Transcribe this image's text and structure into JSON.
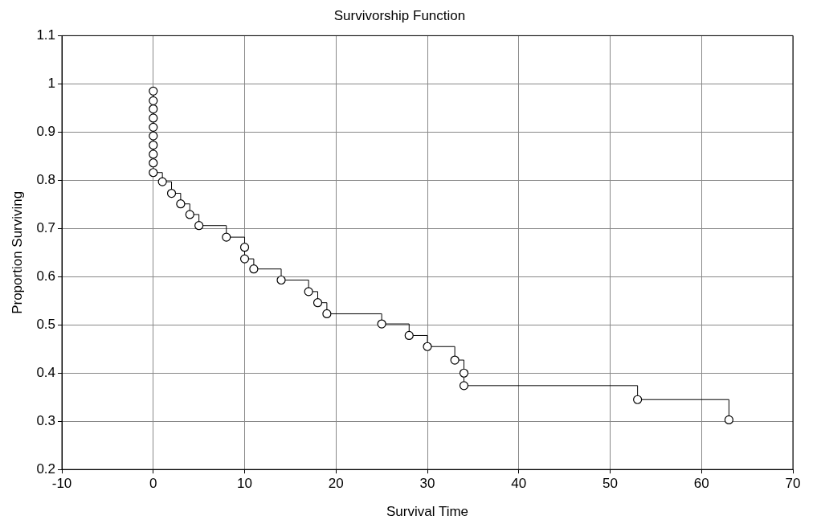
{
  "chart_data": {
    "type": "step",
    "title": "Survivorship Function",
    "xlabel": "Survival Time",
    "ylabel": "Proportion Surviving",
    "xlim": [
      -10,
      70
    ],
    "xticks": [
      -10,
      0,
      10,
      20,
      30,
      40,
      50,
      60,
      70
    ],
    "ylim": [
      0.2,
      1.1
    ],
    "yticks": [
      0.2,
      0.3,
      0.4,
      0.5,
      0.6,
      0.7,
      0.8,
      0.9,
      1,
      1.1
    ],
    "grid": true,
    "marker": "circle",
    "line_style": "solid",
    "series": [
      {
        "color": "#000000",
        "x": [
          0,
          0,
          0,
          0,
          0,
          0,
          0,
          0,
          0,
          0,
          1,
          2,
          3,
          4,
          5,
          8,
          10,
          10,
          11,
          14,
          17,
          18,
          19,
          25,
          28,
          30,
          33,
          34,
          34,
          53,
          63
        ],
        "values": [
          0.985,
          0.965,
          0.948,
          0.929,
          0.91,
          0.892,
          0.873,
          0.854,
          0.836,
          0.816,
          0.797,
          0.773,
          0.751,
          0.729,
          0.706,
          0.682,
          0.661,
          0.637,
          0.616,
          0.593,
          0.569,
          0.546,
          0.523,
          0.502,
          0.478,
          0.455,
          0.427,
          0.4,
          0.374,
          0.345,
          0.303
        ]
      }
    ]
  }
}
